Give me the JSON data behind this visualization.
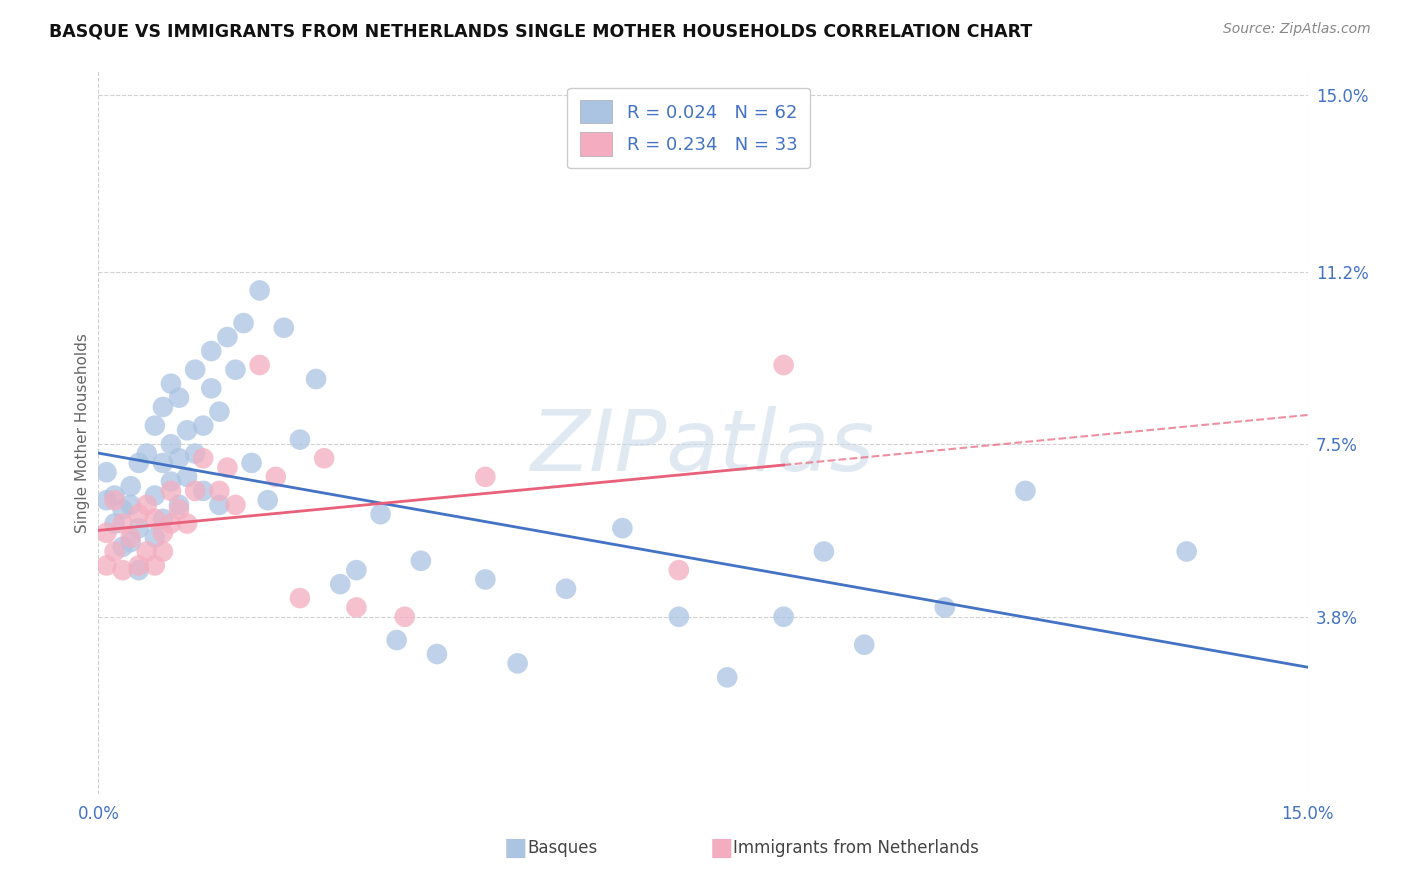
{
  "title": "BASQUE VS IMMIGRANTS FROM NETHERLANDS SINGLE MOTHER HOUSEHOLDS CORRELATION CHART",
  "source": "Source: ZipAtlas.com",
  "ylabel": "Single Mother Households",
  "xlim": [
    0.0,
    0.15
  ],
  "ylim": [
    0.0,
    0.155
  ],
  "y_tick_vals": [
    0.038,
    0.075,
    0.112,
    0.15
  ],
  "y_tick_labels": [
    "3.8%",
    "7.5%",
    "11.2%",
    "15.0%"
  ],
  "x_tick_vals": [
    0.0,
    0.15
  ],
  "x_tick_labels": [
    "0.0%",
    "15.0%"
  ],
  "basque_color": "#aac4e2",
  "netherlands_color": "#f4adc0",
  "basque_line_color": "#4472c4",
  "netherlands_line_color": "#e8607a",
  "watermark_color": "#c8d8e8",
  "watermark_text": "ZIPatlas",
  "background_color": "#ffffff",
  "grid_color": "#d0d0d0",
  "title_fontsize": 12.5,
  "source_fontsize": 10,
  "axis_tick_color": "#4472c4",
  "legend_text_color": "#4472c4",
  "basque_x": [
    0.001,
    0.001,
    0.002,
    0.002,
    0.003,
    0.003,
    0.004,
    0.004,
    0.004,
    0.005,
    0.005,
    0.005,
    0.006,
    0.007,
    0.007,
    0.007,
    0.008,
    0.008,
    0.008,
    0.009,
    0.009,
    0.009,
    0.01,
    0.01,
    0.01,
    0.011,
    0.011,
    0.012,
    0.012,
    0.013,
    0.013,
    0.014,
    0.014,
    0.015,
    0.015,
    0.016,
    0.017,
    0.018,
    0.019,
    0.02,
    0.021,
    0.023,
    0.025,
    0.027,
    0.03,
    0.032,
    0.035,
    0.037,
    0.04,
    0.042,
    0.048,
    0.052,
    0.058,
    0.065,
    0.072,
    0.078,
    0.085,
    0.09,
    0.095,
    0.105,
    0.115,
    0.135
  ],
  "basque_y": [
    0.063,
    0.069,
    0.064,
    0.058,
    0.061,
    0.053,
    0.062,
    0.054,
    0.066,
    0.071,
    0.048,
    0.057,
    0.073,
    0.055,
    0.064,
    0.079,
    0.059,
    0.071,
    0.083,
    0.067,
    0.075,
    0.088,
    0.062,
    0.072,
    0.085,
    0.078,
    0.068,
    0.073,
    0.091,
    0.079,
    0.065,
    0.087,
    0.095,
    0.082,
    0.062,
    0.098,
    0.091,
    0.101,
    0.071,
    0.108,
    0.063,
    0.1,
    0.076,
    0.089,
    0.045,
    0.048,
    0.06,
    0.033,
    0.05,
    0.03,
    0.046,
    0.028,
    0.044,
    0.057,
    0.038,
    0.025,
    0.038,
    0.052,
    0.032,
    0.04,
    0.065,
    0.052
  ],
  "netherlands_x": [
    0.001,
    0.001,
    0.002,
    0.002,
    0.003,
    0.003,
    0.004,
    0.005,
    0.005,
    0.006,
    0.006,
    0.007,
    0.007,
    0.008,
    0.008,
    0.009,
    0.009,
    0.01,
    0.011,
    0.012,
    0.013,
    0.015,
    0.016,
    0.017,
    0.02,
    0.022,
    0.025,
    0.028,
    0.032,
    0.038,
    0.048,
    0.072,
    0.085
  ],
  "netherlands_y": [
    0.056,
    0.049,
    0.063,
    0.052,
    0.048,
    0.058,
    0.055,
    0.049,
    0.06,
    0.052,
    0.062,
    0.049,
    0.059,
    0.056,
    0.052,
    0.058,
    0.065,
    0.061,
    0.058,
    0.065,
    0.072,
    0.065,
    0.07,
    0.062,
    0.092,
    0.068,
    0.042,
    0.072,
    0.04,
    0.038,
    0.068,
    0.048,
    0.092
  ],
  "netherlands_line_x_solid_end": 0.085,
  "netherlands_line_x_dash_end": 0.15
}
